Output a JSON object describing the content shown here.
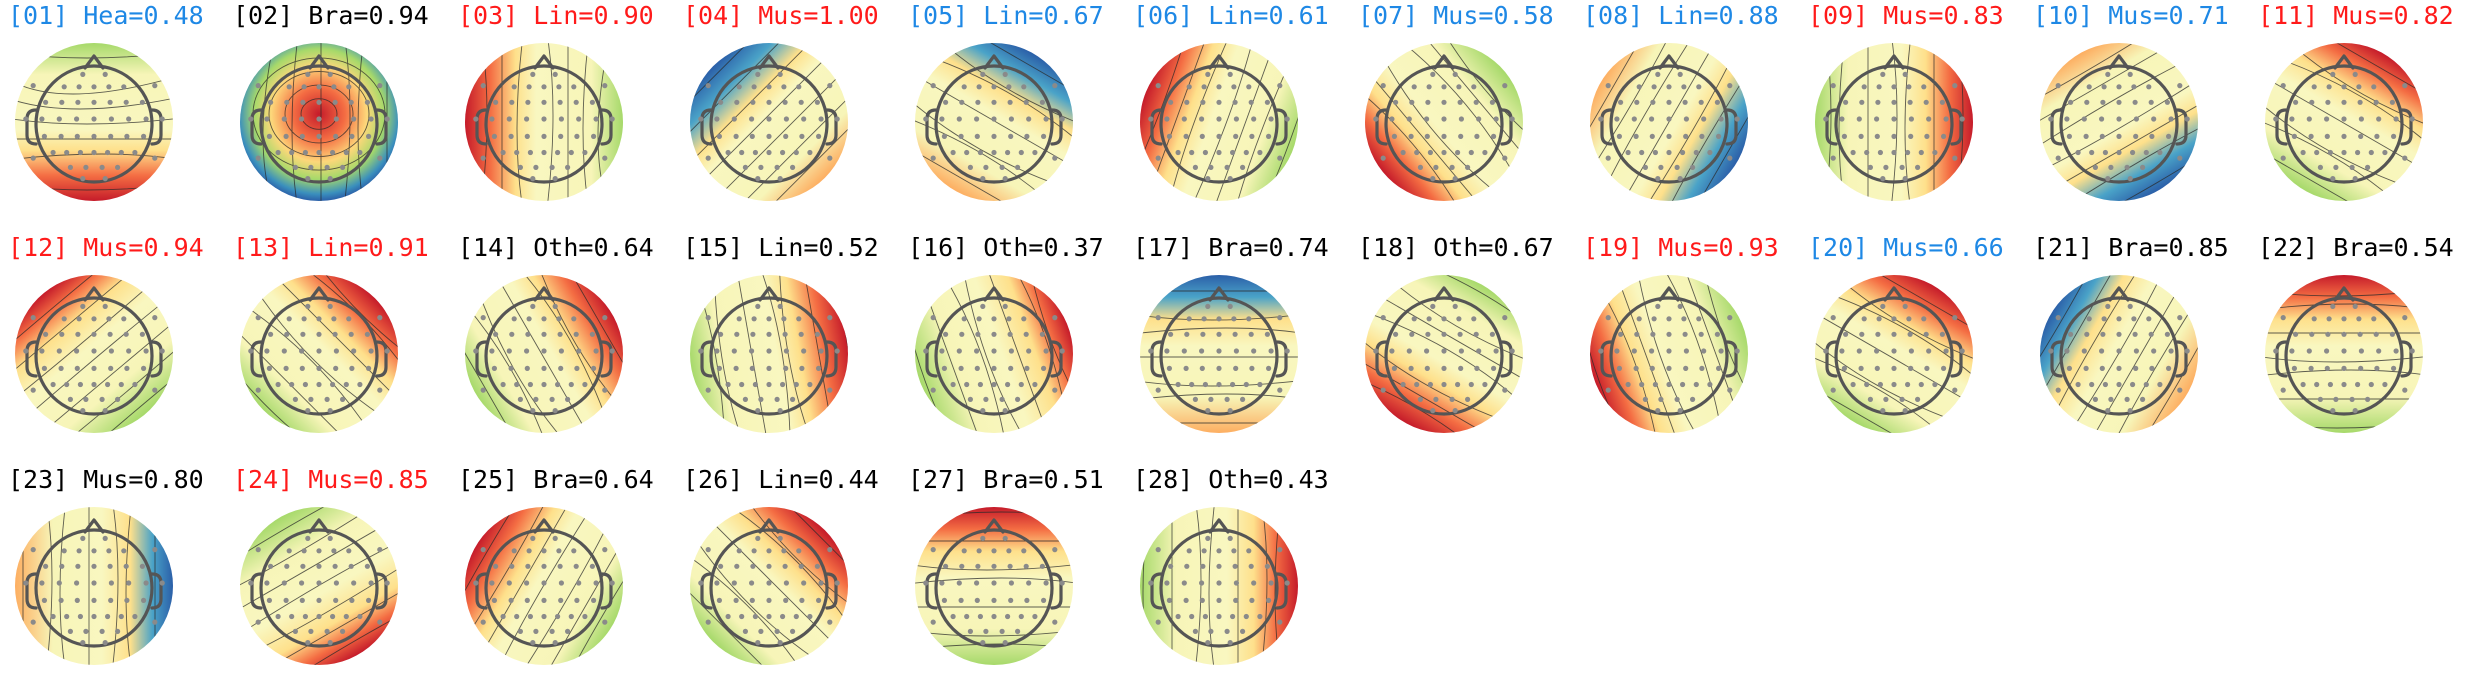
{
  "figure": {
    "colors": {
      "black": "#000000",
      "blue": "#1e88e5",
      "red": "#ff1a1a"
    },
    "components": [
      {
        "label": "[01] Hea=0.48",
        "color": "blue",
        "pattern": "gradient",
        "angle": 270,
        "strength": 1.0
      },
      {
        "label": "[02] Bra=0.94",
        "color": "black",
        "pattern": "centerhot"
      },
      {
        "label": "[03] Lin=0.90",
        "color": "red",
        "pattern": "gradient",
        "angle": 180,
        "strength": 1.0
      },
      {
        "label": "[04] Mus=1.00",
        "color": "red",
        "pattern": "gradient",
        "angle": 135,
        "strength": -1.0
      },
      {
        "label": "[05] Lin=0.67",
        "color": "blue",
        "pattern": "gradient",
        "angle": 60,
        "strength": -0.8
      },
      {
        "label": "[06] Lin=0.61",
        "color": "blue",
        "pattern": "gradient",
        "angle": 160,
        "strength": 0.8
      },
      {
        "label": "[07] Mus=0.58",
        "color": "blue",
        "pattern": "gradient",
        "angle": 220,
        "strength": 0.6
      },
      {
        "label": "[08] Lin=0.88",
        "color": "blue",
        "pattern": "gradient",
        "angle": 330,
        "strength": -0.9
      },
      {
        "label": "[09] Mus=0.83",
        "color": "red",
        "pattern": "gradient",
        "angle": 0,
        "strength": 0.8
      },
      {
        "label": "[10] Mus=0.71",
        "color": "blue",
        "pattern": "gradient",
        "angle": 300,
        "strength": -0.9
      },
      {
        "label": "[11] Mus=0.82",
        "color": "red",
        "pattern": "gradient",
        "angle": 60,
        "strength": 0.7
      },
      {
        "label": "[12] Mus=0.94",
        "color": "red",
        "pattern": "gradient",
        "angle": 130,
        "strength": 0.4
      },
      {
        "label": "[13] Lin=0.91",
        "color": "red",
        "pattern": "gradient",
        "angle": 45,
        "strength": 0.8
      },
      {
        "label": "[14] Oth=0.64",
        "color": "black",
        "pattern": "gradient",
        "angle": 30,
        "strength": 0.9
      },
      {
        "label": "[15] Lin=0.52",
        "color": "black",
        "pattern": "gradient",
        "angle": 10,
        "strength": 0.9
      },
      {
        "label": "[16] Oth=0.37",
        "color": "black",
        "pattern": "gradient",
        "angle": 20,
        "strength": 0.3
      },
      {
        "label": "[17] Bra=0.74",
        "color": "black",
        "pattern": "gradient",
        "angle": 90,
        "strength": -0.6
      },
      {
        "label": "[18] Oth=0.67",
        "color": "black",
        "pattern": "gradient",
        "angle": 240,
        "strength": 1.0
      },
      {
        "label": "[19] Mus=0.93",
        "color": "red",
        "pattern": "gradient",
        "angle": 200,
        "strength": 0.6
      },
      {
        "label": "[20] Mus=0.66",
        "color": "blue",
        "pattern": "gradient",
        "angle": 60,
        "strength": 0.8
      },
      {
        "label": "[21] Bra=0.85",
        "color": "black",
        "pattern": "gradient",
        "angle": 150,
        "strength": -0.6
      },
      {
        "label": "[22] Bra=0.54",
        "color": "black",
        "pattern": "gradient",
        "angle": 90,
        "strength": 0.6
      },
      {
        "label": "[23] Mus=0.80",
        "color": "black",
        "pattern": "gradient",
        "angle": 0,
        "strength": -0.5
      },
      {
        "label": "[24] Mus=0.85",
        "color": "red",
        "pattern": "gradient",
        "angle": 300,
        "strength": 0.3
      },
      {
        "label": "[25] Bra=0.64",
        "color": "black",
        "pattern": "gradient",
        "angle": 150,
        "strength": 0.9
      },
      {
        "label": "[26] Lin=0.44",
        "color": "black",
        "pattern": "gradient",
        "angle": 45,
        "strength": 0.9
      },
      {
        "label": "[27] Bra=0.51",
        "color": "black",
        "pattern": "gradient",
        "angle": 90,
        "strength": 0.6
      },
      {
        "label": "[28] Oth=0.43",
        "color": "black",
        "pattern": "gradient",
        "angle": 0,
        "strength": 0.6
      }
    ]
  }
}
